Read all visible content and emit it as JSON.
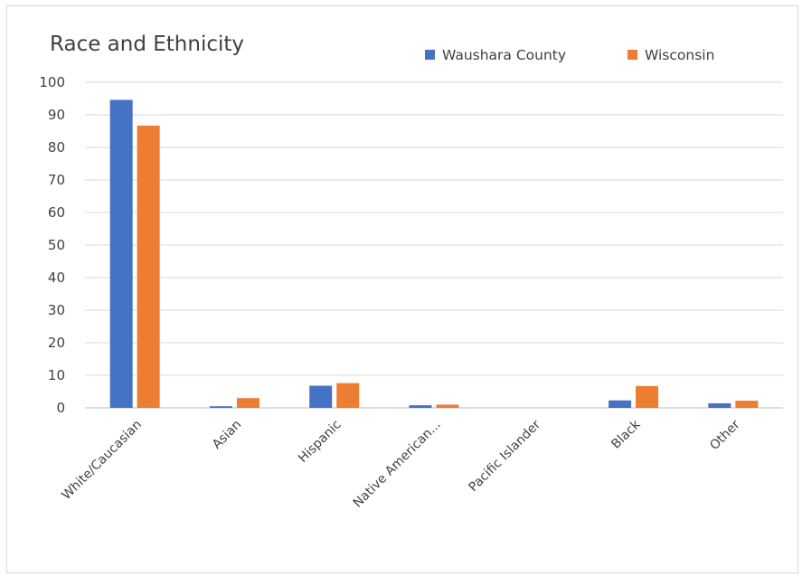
{
  "chart_data": {
    "type": "bar",
    "title": "Race and Ethnicity",
    "categories": [
      "White/Caucasian",
      "Asian",
      "Hispanic",
      "Native American...",
      "Pacific Islander",
      "Black",
      "Other"
    ],
    "series": [
      {
        "name": "Waushara County",
        "color": "#4472c4",
        "values": [
          94.6,
          0.5,
          6.8,
          0.8,
          0,
          2.3,
          1.4
        ]
      },
      {
        "name": "Wisconsin",
        "color": "#ed7d31",
        "values": [
          86.7,
          3.0,
          7.6,
          1.0,
          0,
          6.7,
          2.2
        ]
      }
    ],
    "xlabel": "",
    "ylabel": "",
    "ylim": [
      0,
      100
    ],
    "yticks": [
      0,
      10,
      20,
      30,
      40,
      50,
      60,
      70,
      80,
      90,
      100
    ],
    "grid": true,
    "legend_position": "top-right"
  }
}
